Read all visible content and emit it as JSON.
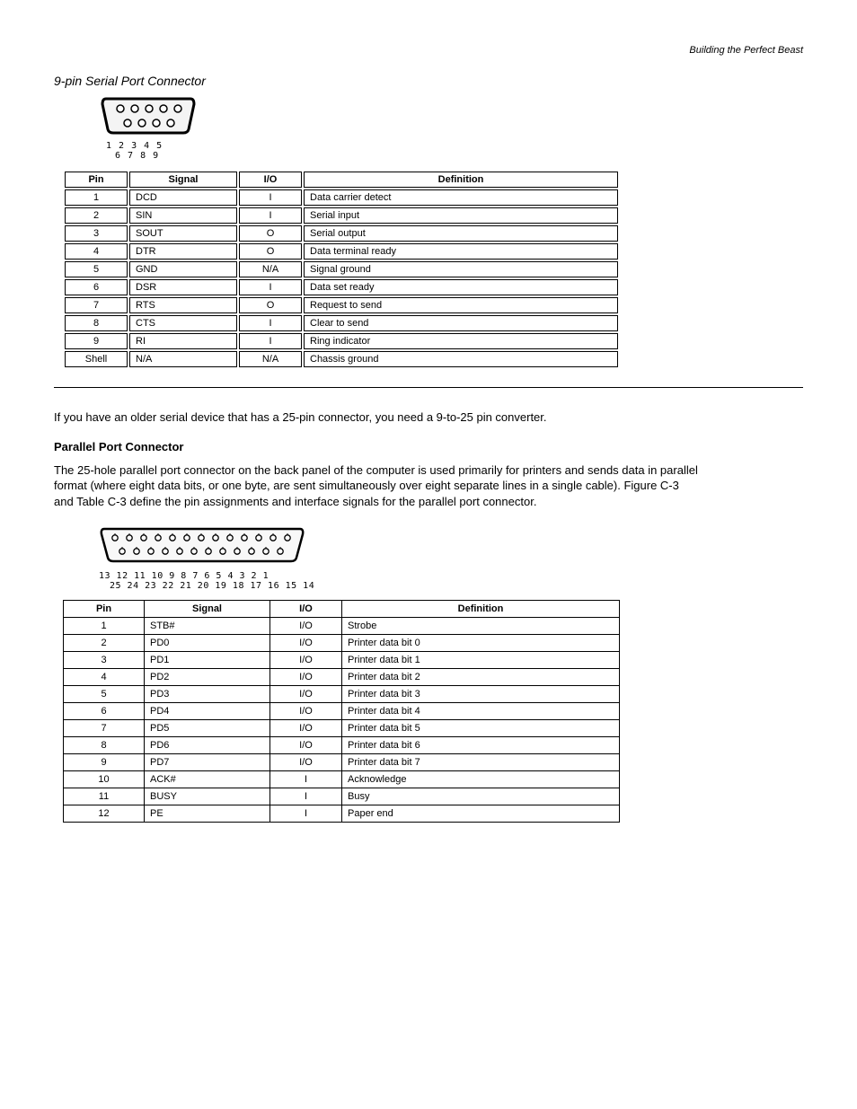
{
  "page": {
    "header_right": "Building the Perfect Beast",
    "section1_title": "9-pin Serial Port Connector",
    "db9_pin_row1": "1  2  3  4  5",
    "db9_pin_row2": "6  7  8  9",
    "table1": {
      "headers": [
        "Pin",
        "Signal",
        "I/O",
        "Definition"
      ],
      "rows": [
        [
          "1",
          "DCD",
          "I",
          "Data carrier detect"
        ],
        [
          "2",
          "SIN",
          "I",
          "Serial input"
        ],
        [
          "3",
          "SOUT",
          "O",
          "Serial output"
        ],
        [
          "4",
          "DTR",
          "O",
          "Data terminal ready"
        ],
        [
          "5",
          "GND",
          "N/A",
          "Signal ground"
        ],
        [
          "6",
          "DSR",
          "I",
          "Data set ready"
        ],
        [
          "7",
          "RTS",
          "O",
          "Request to send"
        ],
        [
          "8",
          "CTS",
          "I",
          "Clear to send"
        ],
        [
          "9",
          "RI",
          "I",
          "Ring indicator"
        ],
        [
          "Shell",
          "N/A",
          "N/A",
          "Chassis ground"
        ]
      ]
    },
    "para1": "If you have an older serial device that has a 25-pin connector, you need a 9-to-25 pin converter.",
    "parallel_title": "Parallel Port Connector",
    "para2": "The 25-hole parallel port connector on the back panel of the computer is used primarily for printers and sends data in parallel format (where eight data bits, or one byte, are sent simultaneously over eight separate lines in a single cable). Figure C-3 and Table C-3 define the pin assignments and interface signals for the parallel port connector.",
    "db25_pin_row1": "13 12 11 10  9  8  7  6  5  4  3  2  1",
    "db25_pin_row2": "25 24 23 22 21 20 19 18 17 16 15 14",
    "table2": {
      "headers": [
        "Pin",
        "Signal",
        "I/O",
        "Definition"
      ],
      "rows": [
        [
          "1",
          "STB#",
          "I/O",
          "Strobe"
        ],
        [
          "2",
          "PD0",
          "I/O",
          "Printer data bit 0"
        ],
        [
          "3",
          "PD1",
          "I/O",
          "Printer data bit 1"
        ],
        [
          "4",
          "PD2",
          "I/O",
          "Printer data bit 2"
        ],
        [
          "5",
          "PD3",
          "I/O",
          "Printer data bit 3"
        ],
        [
          "6",
          "PD4",
          "I/O",
          "Printer data bit 4"
        ],
        [
          "7",
          "PD5",
          "I/O",
          "Printer data bit 5"
        ],
        [
          "8",
          "PD6",
          "I/O",
          "Printer data bit 6"
        ],
        [
          "9",
          "PD7",
          "I/O",
          "Printer data bit 7"
        ],
        [
          "10",
          "ACK#",
          "I",
          "Acknowledge"
        ],
        [
          "11",
          "BUSY",
          "I",
          "Busy"
        ],
        [
          "12",
          "PE",
          "I",
          "Paper end"
        ]
      ]
    },
    "col_widths_t1": [
      "70px",
      "120px",
      "70px",
      "auto"
    ],
    "col_widths_t2": [
      "90px",
      "140px",
      "80px",
      "auto"
    ]
  }
}
